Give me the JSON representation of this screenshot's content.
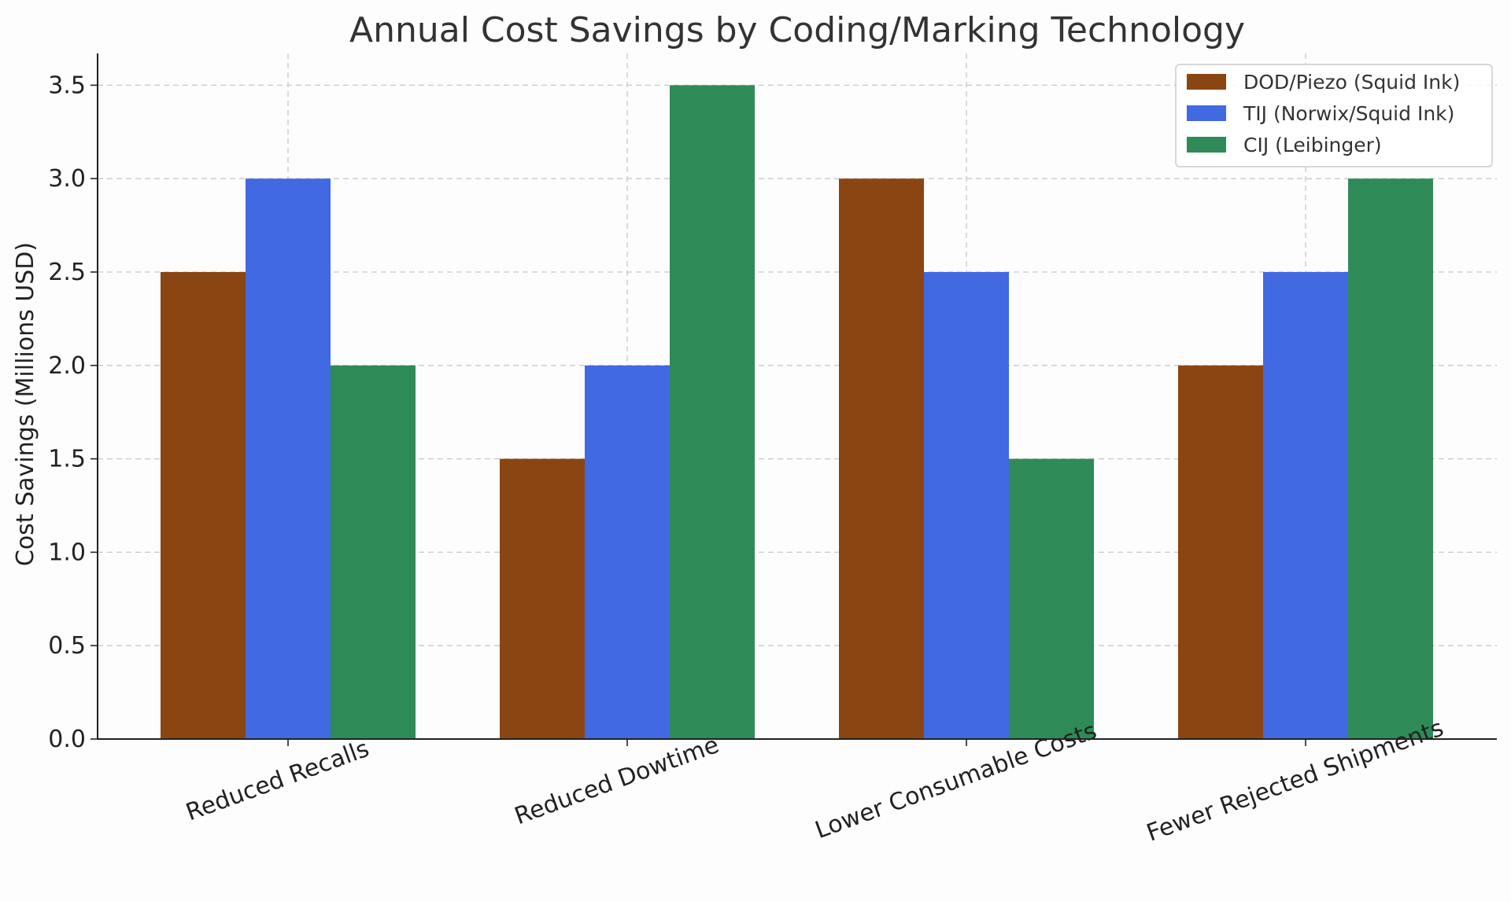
{
  "chart_data": {
    "type": "bar",
    "title": "Annual Cost Savings by Coding/Marking Technology",
    "xlabel": "",
    "ylabel": "Cost Savings (Millions USD)",
    "categories": [
      "Reduced Recalls",
      "Reduced Dowtime",
      "Lower Consumable Costs",
      "Fewer Rejected Shipments"
    ],
    "series": [
      {
        "name": "DOD/Piezo (Squid Ink)",
        "color": "#8b4513",
        "values": [
          2.5,
          1.5,
          3.0,
          2.0
        ]
      },
      {
        "name": "TIJ (Norwix/Squid Ink)",
        "color": "#4169e1",
        "values": [
          3.0,
          2.0,
          2.5,
          2.5
        ]
      },
      {
        "name": "CIJ (Leibinger)",
        "color": "#2e8b57",
        "values": [
          2.0,
          3.5,
          1.5,
          3.0
        ]
      }
    ],
    "ylim": [
      0,
      3.67
    ],
    "yticks": [
      "0.0",
      "0.5",
      "1.0",
      "1.5",
      "2.0",
      "2.5",
      "3.0",
      "3.5"
    ],
    "grid": true,
    "legend_position": "top-right"
  }
}
